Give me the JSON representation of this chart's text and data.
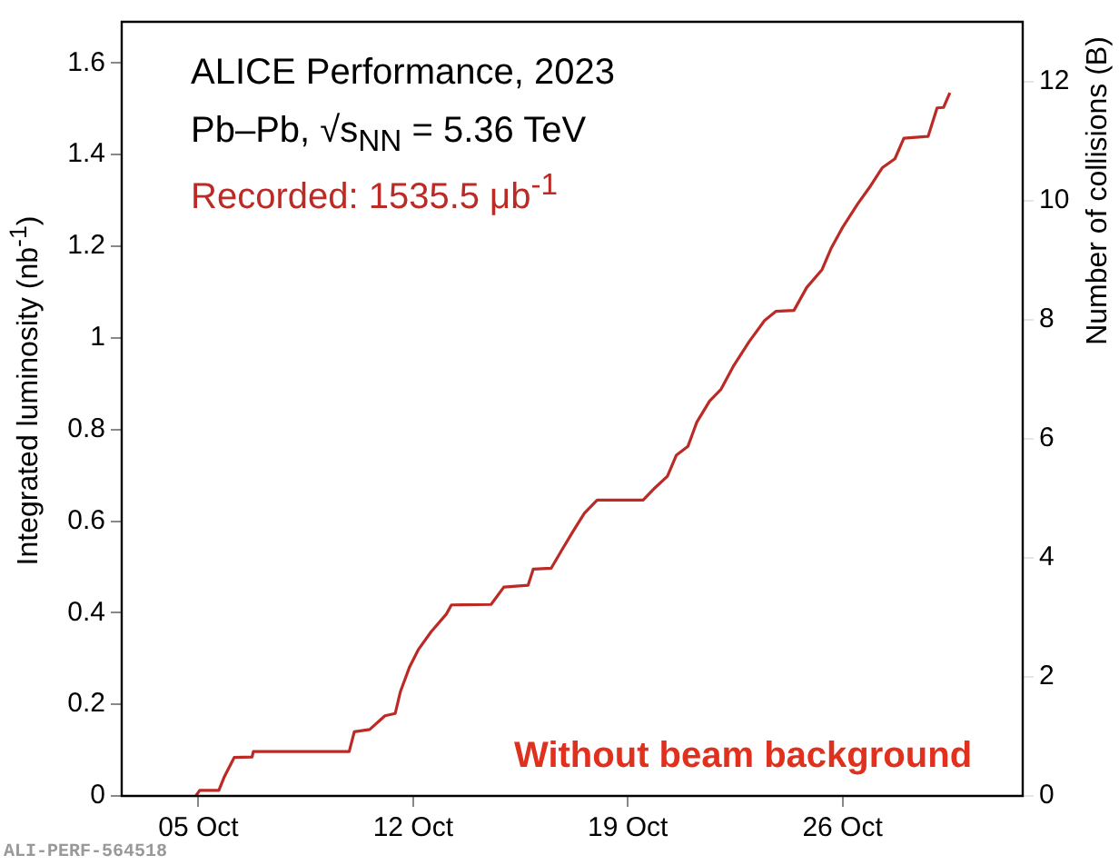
{
  "chart_data": {
    "type": "line",
    "ylabel": "Integrated luminosity (nb$^{-1}$)",
    "y2label": "Number of collisions (B)",
    "annotations": [
      "ALICE Performance, 2023",
      "Pb–Pb, √s$_{NN}$ = 5.36 TeV",
      "Recorded: 1535.5 μb$^{-1}$",
      "Without beam background",
      "ALI-PERF-564518"
    ],
    "x": [
      "2023-10-04T22:00",
      "2023-10-05T01:00",
      "2023-10-05T16:00",
      "2023-10-05T20:00",
      "2023-10-06T04:00",
      "2023-10-06T18:00",
      "2023-10-06T19:00",
      "2023-10-09T22:00",
      "2023-10-10T02:00",
      "2023-10-10T14:00",
      "2023-10-11T02:00",
      "2023-10-11T10:00",
      "2023-10-11T14:00",
      "2023-10-11T21:00",
      "2023-10-12T04:00",
      "2023-10-12T14:00",
      "2023-10-13T02:00",
      "2023-10-13T06:00",
      "2023-10-14T13:00",
      "2023-10-14T23:00",
      "2023-10-15T18:00",
      "2023-10-15T22:00",
      "2023-10-16T12:00",
      "2023-10-16T20:00",
      "2023-10-17T05:00",
      "2023-10-17T14:00",
      "2023-10-18T00:00",
      "2023-10-19T12:00",
      "2023-10-19T21:00",
      "2023-10-20T07:00",
      "2023-10-20T14:00",
      "2023-10-20T23:00",
      "2023-10-21T06:00",
      "2023-10-21T16:00",
      "2023-10-22T01:00",
      "2023-10-22T11:00",
      "2023-10-22T23:00",
      "2023-10-23T11:00",
      "2023-10-23T20:00",
      "2023-10-24T10:00",
      "2023-10-24T20:00",
      "2023-10-25T08:00",
      "2023-10-25T15:00",
      "2023-10-26T00:00",
      "2023-10-26T12:00",
      "2023-10-26T22:00",
      "2023-10-27T07:00",
      "2023-10-27T17:00",
      "2023-10-28T00:00",
      "2023-10-28T19:00",
      "2023-10-29T02:00",
      "2023-10-29T07:00",
      "2023-10-29T12:00"
    ],
    "series": [
      {
        "color": "#bb2a25",
        "values": [
          0,
          0.012,
          0.012,
          0.04,
          0.084,
          0.085,
          0.097,
          0.097,
          0.14,
          0.145,
          0.175,
          0.18,
          0.227,
          0.28,
          0.319,
          0.358,
          0.397,
          0.417,
          0.418,
          0.456,
          0.46,
          0.495,
          0.497,
          0.535,
          0.577,
          0.617,
          0.646,
          0.646,
          0.672,
          0.698,
          0.744,
          0.763,
          0.816,
          0.862,
          0.888,
          0.94,
          0.992,
          1.038,
          1.058,
          1.06,
          1.11,
          1.149,
          1.195,
          1.241,
          1.293,
          1.332,
          1.371,
          1.391,
          1.436,
          1.44,
          1.502,
          1.503,
          1.535
        ]
      }
    ],
    "xlim": [
      "2023-10-02T12:00",
      "2023-10-31T21:00"
    ],
    "xticks": [
      {
        "value": "2023-10-05",
        "label": "05 Oct"
      },
      {
        "value": "2023-10-12",
        "label": "12 Oct"
      },
      {
        "value": "2023-10-19",
        "label": "19 Oct"
      },
      {
        "value": "2023-10-26",
        "label": "26 Oct"
      }
    ],
    "ylim": [
      0,
      1.69
    ],
    "yticks": [
      0,
      0.2,
      0.4,
      0.6,
      0.8,
      1,
      1.2,
      1.4,
      1.6
    ],
    "y2lim": [
      0,
      13
    ],
    "y2ticks": [
      0,
      2,
      4,
      6,
      8,
      10,
      12
    ],
    "grid": false,
    "legend": false,
    "marker": "none",
    "line_style": "solid"
  }
}
